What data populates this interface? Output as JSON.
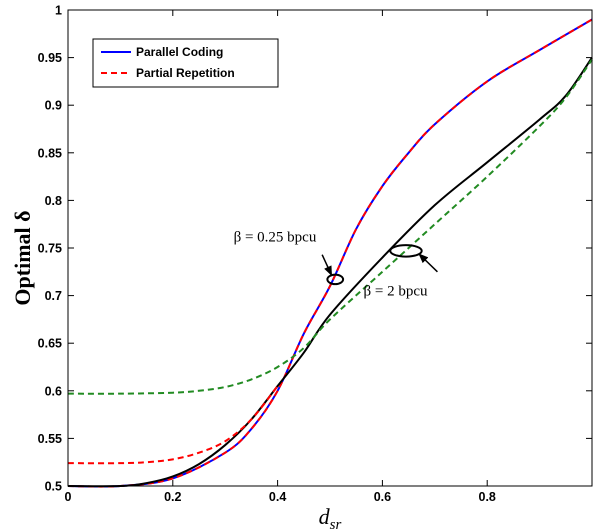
{
  "chart_data": {
    "type": "line",
    "xlabel": "d",
    "xlabel_sub": "sr",
    "ylabel": "Optimal δ",
    "xlim": [
      0,
      1
    ],
    "ylim": [
      0.5,
      1
    ],
    "xticks": [
      0,
      0.2,
      0.4,
      0.6,
      0.8
    ],
    "xtick_labels": [
      "0",
      "0.2",
      "0.4",
      "0.6",
      "0.8"
    ],
    "yticks": [
      0.5,
      0.55,
      0.6,
      0.65,
      0.7,
      0.75,
      0.8,
      0.85,
      0.9,
      0.95,
      1
    ],
    "ytick_labels": [
      "0.5",
      "0.55",
      "0.6",
      "0.65",
      "0.7",
      "0.75",
      "0.8",
      "0.85",
      "0.9",
      "0.95",
      "1"
    ],
    "grid": false,
    "legend_position": "top-left",
    "legend": [
      {
        "name": "Parallel Coding",
        "color": "#0000ff",
        "dash": "solid"
      },
      {
        "name": "Partial Repetition",
        "color": "#ff0000",
        "dash": "dashed"
      }
    ],
    "series": [
      {
        "id": "pc-0.25",
        "color": "#0000ff",
        "dash": "solid",
        "x": [
          0,
          0.1,
          0.2,
          0.3,
          0.35,
          0.4,
          0.45,
          0.5,
          0.55,
          0.6,
          0.65,
          0.7,
          0.8,
          0.9,
          1.0
        ],
        "y": [
          0.5,
          0.5,
          0.508,
          0.535,
          0.56,
          0.6,
          0.66,
          0.71,
          0.77,
          0.815,
          0.85,
          0.88,
          0.925,
          0.958,
          0.99
        ]
      },
      {
        "id": "pr-0.25",
        "color": "#ff0000",
        "dash": "dashed",
        "x": [
          0,
          0.1,
          0.2,
          0.3,
          0.35,
          0.4,
          0.45,
          0.5,
          0.55,
          0.6,
          0.65,
          0.7,
          0.8,
          0.9,
          1.0
        ],
        "y": [
          0.5,
          0.5,
          0.508,
          0.535,
          0.56,
          0.6,
          0.66,
          0.71,
          0.77,
          0.815,
          0.85,
          0.88,
          0.925,
          0.958,
          0.99
        ]
      },
      {
        "id": "pc-2",
        "color": "#000000",
        "dash": "solid",
        "x": [
          0,
          0.1,
          0.15,
          0.2,
          0.25,
          0.3,
          0.35,
          0.4,
          0.45,
          0.5,
          0.6,
          0.7,
          0.8,
          0.9,
          0.95,
          1.0
        ],
        "y": [
          0.5,
          0.5,
          0.503,
          0.51,
          0.523,
          0.543,
          0.57,
          0.605,
          0.64,
          0.68,
          0.74,
          0.795,
          0.84,
          0.885,
          0.91,
          0.95
        ]
      },
      {
        "id": "pr-2-red",
        "color": "#ff0000",
        "dash": "dashed",
        "x": [
          0,
          0.1,
          0.15,
          0.2,
          0.25,
          0.3,
          0.35,
          0.4
        ],
        "y": [
          0.524,
          0.524,
          0.525,
          0.528,
          0.535,
          0.547,
          0.57,
          0.605
        ]
      },
      {
        "id": "pr-2-green",
        "color": "#228b22",
        "dash": "dashed",
        "x": [
          0,
          0.1,
          0.2,
          0.25,
          0.3,
          0.35,
          0.4,
          0.45,
          0.5,
          0.6,
          0.7,
          0.8,
          0.9,
          0.95,
          1.0
        ],
        "y": [
          0.597,
          0.597,
          0.598,
          0.6,
          0.604,
          0.612,
          0.625,
          0.645,
          0.675,
          0.725,
          0.775,
          0.825,
          0.878,
          0.908,
          0.948
        ]
      }
    ],
    "annotations": [
      {
        "id": "beta-025",
        "text": "β = 0.25 bpcu",
        "ellipse_center": [
          0.51,
          0.717
        ],
        "ellipse_rx": 0.015,
        "ellipse_ry": 0.005,
        "text_anchor_at": [
          0.395,
          0.757
        ],
        "arrow_from": [
          0.485,
          0.743
        ]
      },
      {
        "id": "beta-2",
        "text": "β = 2 bpcu",
        "ellipse_center": [
          0.645,
          0.747
        ],
        "ellipse_rx": 0.03,
        "ellipse_ry": 0.006,
        "text_anchor_at": [
          0.625,
          0.7
        ],
        "arrow_from": [
          0.705,
          0.725
        ]
      }
    ]
  }
}
